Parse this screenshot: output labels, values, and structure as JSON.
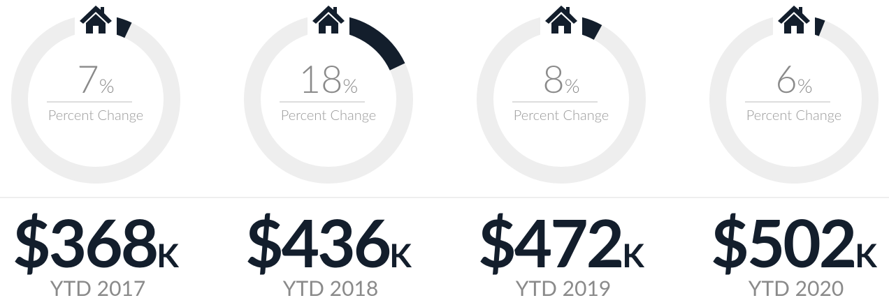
{
  "chart_data": {
    "type": "gauge",
    "color": "#131e2c",
    "track_color": "#eeeeee",
    "items": [
      {
        "value": 7,
        "unit": "%",
        "caption": "Percent Change",
        "price": "$368",
        "price_unit": "K",
        "year": "YTD 2017"
      },
      {
        "value": 18,
        "unit": "%",
        "caption": "Percent Change",
        "price": "$436",
        "price_unit": "K",
        "year": "YTD 2018"
      },
      {
        "value": 8,
        "unit": "%",
        "caption": "Percent Change",
        "price": "$472",
        "price_unit": "K",
        "year": "YTD 2019"
      },
      {
        "value": 6,
        "unit": "%",
        "caption": "Percent Change",
        "price": "$502",
        "price_unit": "K",
        "year": "YTD 2020"
      }
    ]
  }
}
